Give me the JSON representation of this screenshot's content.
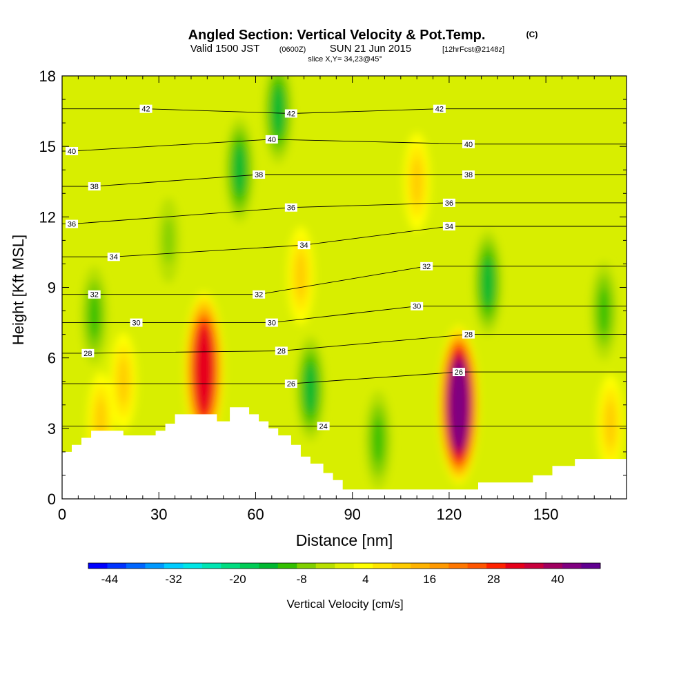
{
  "chart_data": {
    "type": "heatmap",
    "title_main": "Angled Section: Vertical Velocity & Pot.Temp.",
    "title_unit": "(C)",
    "subtitle_valid": "Valid 1500 JST",
    "subtitle_z": "(0600Z)",
    "subtitle_date": "SUN 21 Jun 2015",
    "subtitle_fcst": "[12hrFcst@2148z]",
    "slice_label": "slice X,Y= 34,23@45°",
    "xlabel": "Distance [nm]",
    "ylabel": "Height [Kft MSL]",
    "xlim": [
      0,
      175
    ],
    "ylim": [
      0,
      18
    ],
    "x_ticks": [
      0,
      30,
      60,
      90,
      120,
      150
    ],
    "y_ticks": [
      0,
      3,
      6,
      9,
      12,
      15,
      18
    ],
    "colorbar": {
      "label": "Vertical Velocity [cm/s]",
      "ticks": [
        -44,
        -32,
        -20,
        -8,
        4,
        16,
        28,
        40
      ],
      "range": [
        -48,
        48
      ],
      "colors": [
        "#0000ff",
        "#0033ff",
        "#0066ff",
        "#0099ff",
        "#00ccff",
        "#00e6e6",
        "#00e6b3",
        "#00dd80",
        "#00cc55",
        "#00b830",
        "#33c000",
        "#80d000",
        "#b8e000",
        "#e0f000",
        "#ffff00",
        "#ffe600",
        "#ffcc00",
        "#ffb300",
        "#ff9900",
        "#ff7700",
        "#ff5500",
        "#ff2200",
        "#e6001a",
        "#c8003c",
        "#a00060",
        "#800080",
        "#600090"
      ]
    },
    "updrafts": [
      {
        "x": 44,
        "y": 5.5,
        "value": 30
      },
      {
        "x": 123,
        "y": 4.0,
        "value": 44
      },
      {
        "x": 74,
        "y": 9.5,
        "value": 10
      },
      {
        "x": 110,
        "y": 13.5,
        "value": 12
      },
      {
        "x": 19,
        "y": 5.0,
        "value": 10
      },
      {
        "x": 170,
        "y": 3.2,
        "value": 10
      },
      {
        "x": 12,
        "y": 3.3,
        "value": 10
      }
    ],
    "downdrafts": [
      {
        "x": 10,
        "y": 7.8,
        "value": -12
      },
      {
        "x": 55,
        "y": 14.0,
        "value": -14
      },
      {
        "x": 67,
        "y": 16.5,
        "value": -14
      },
      {
        "x": 77,
        "y": 4.7,
        "value": -14
      },
      {
        "x": 98,
        "y": 2.5,
        "value": -10
      },
      {
        "x": 132,
        "y": 9.2,
        "value": -14
      },
      {
        "x": 168,
        "y": 8.0,
        "value": -10
      },
      {
        "x": 33,
        "y": 11.0,
        "value": -8
      }
    ],
    "isotherm_labels": [
      {
        "text": "42",
        "x": 26,
        "y": 16.6
      },
      {
        "text": "42",
        "x": 71,
        "y": 16.4
      },
      {
        "text": "42",
        "x": 117,
        "y": 16.6
      },
      {
        "text": "40",
        "x": 3,
        "y": 14.8
      },
      {
        "text": "40",
        "x": 65,
        "y": 15.3
      },
      {
        "text": "40",
        "x": 126,
        "y": 15.1
      },
      {
        "text": "38",
        "x": 10,
        "y": 13.3
      },
      {
        "text": "38",
        "x": 61,
        "y": 13.8
      },
      {
        "text": "38",
        "x": 126,
        "y": 13.8
      },
      {
        "text": "36",
        "x": 3,
        "y": 11.7
      },
      {
        "text": "36",
        "x": 71,
        "y": 12.4
      },
      {
        "text": "36",
        "x": 120,
        "y": 12.6
      },
      {
        "text": "34",
        "x": 16,
        "y": 10.3
      },
      {
        "text": "34",
        "x": 75,
        "y": 10.8
      },
      {
        "text": "34",
        "x": 120,
        "y": 11.6
      },
      {
        "text": "32",
        "x": 10,
        "y": 8.7
      },
      {
        "text": "32",
        "x": 61,
        "y": 8.7
      },
      {
        "text": "32",
        "x": 113,
        "y": 9.9
      },
      {
        "text": "30",
        "x": 23,
        "y": 7.5
      },
      {
        "text": "30",
        "x": 65,
        "y": 7.5
      },
      {
        "text": "30",
        "x": 110,
        "y": 8.2
      },
      {
        "text": "28",
        "x": 8,
        "y": 6.2
      },
      {
        "text": "28",
        "x": 68,
        "y": 6.3
      },
      {
        "text": "28",
        "x": 126,
        "y": 7.0
      },
      {
        "text": "26",
        "x": 71,
        "y": 4.9
      },
      {
        "text": "26",
        "x": 123,
        "y": 5.4
      },
      {
        "text": "24",
        "x": 81,
        "y": 3.1
      }
    ],
    "terrain": [
      [
        0,
        2.0
      ],
      [
        3,
        2.0
      ],
      [
        3,
        2.3
      ],
      [
        6,
        2.3
      ],
      [
        6,
        2.6
      ],
      [
        9,
        2.6
      ],
      [
        9,
        2.9
      ],
      [
        19,
        2.9
      ],
      [
        19,
        2.7
      ],
      [
        29,
        2.7
      ],
      [
        29,
        2.9
      ],
      [
        32,
        2.9
      ],
      [
        32,
        3.2
      ],
      [
        35,
        3.2
      ],
      [
        35,
        3.6
      ],
      [
        48,
        3.6
      ],
      [
        48,
        3.3
      ],
      [
        52,
        3.3
      ],
      [
        52,
        3.9
      ],
      [
        58,
        3.9
      ],
      [
        58,
        3.6
      ],
      [
        61,
        3.6
      ],
      [
        61,
        3.3
      ],
      [
        64,
        3.3
      ],
      [
        64,
        3.0
      ],
      [
        67,
        3.0
      ],
      [
        67,
        2.7
      ],
      [
        71,
        2.7
      ],
      [
        71,
        2.3
      ],
      [
        74,
        2.3
      ],
      [
        74,
        1.8
      ],
      [
        77,
        1.8
      ],
      [
        77,
        1.5
      ],
      [
        81,
        1.5
      ],
      [
        81,
        1.1
      ],
      [
        84,
        1.1
      ],
      [
        84,
        0.8
      ],
      [
        87,
        0.8
      ],
      [
        87,
        0.4
      ],
      [
        129,
        0.4
      ],
      [
        129,
        0.7
      ],
      [
        146,
        0.7
      ],
      [
        146,
        1.0
      ],
      [
        152,
        1.0
      ],
      [
        152,
        1.4
      ],
      [
        159,
        1.4
      ],
      [
        159,
        1.7
      ],
      [
        175,
        1.7
      ]
    ]
  }
}
